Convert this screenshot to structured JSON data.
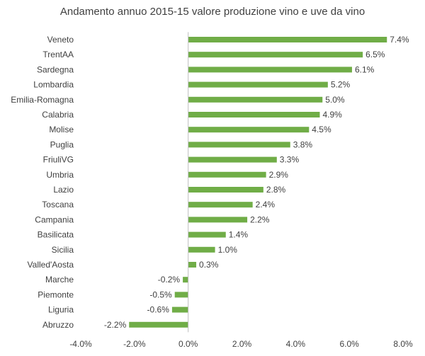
{
  "chart_data": {
    "type": "bar",
    "orientation": "horizontal",
    "title": "Andamento annuo 2015-15 valore produzione vino e uve da vino",
    "xlabel": "",
    "ylabel": "",
    "xlim": [
      -0.04,
      0.08
    ],
    "x_ticks": [
      -0.04,
      -0.02,
      0.0,
      0.02,
      0.04,
      0.06,
      0.08
    ],
    "x_tick_labels": [
      "-4.0%",
      "-2.0%",
      "0.0%",
      "2.0%",
      "4.0%",
      "6.0%",
      "8.0%"
    ],
    "grid": false,
    "bar_color": "#70AD47",
    "categories": [
      "Veneto",
      "TrentAA",
      "Sardegna",
      "Lombardia",
      "Emilia-Romagna",
      "Calabria",
      "Molise",
      "Puglia",
      "FriuliVG",
      "Umbria",
      "Lazio",
      "Toscana",
      "Campania",
      "Basilicata",
      "Sicilia",
      "Valled'Aosta",
      "Marche",
      "Piemonte",
      "Liguria",
      "Abruzzo"
    ],
    "values": [
      0.074,
      0.065,
      0.061,
      0.052,
      0.05,
      0.049,
      0.045,
      0.038,
      0.033,
      0.029,
      0.028,
      0.024,
      0.022,
      0.014,
      0.01,
      0.003,
      -0.002,
      -0.005,
      -0.006,
      -0.022
    ],
    "data_labels": [
      "7.4%",
      "6.5%",
      "6.1%",
      "5.2%",
      "5.0%",
      "4.9%",
      "4.5%",
      "3.8%",
      "3.3%",
      "2.9%",
      "2.8%",
      "2.4%",
      "2.2%",
      "1.4%",
      "1.0%",
      "0.3%",
      "-0.2%",
      "-0.5%",
      "-0.6%",
      "-2.2%"
    ]
  }
}
